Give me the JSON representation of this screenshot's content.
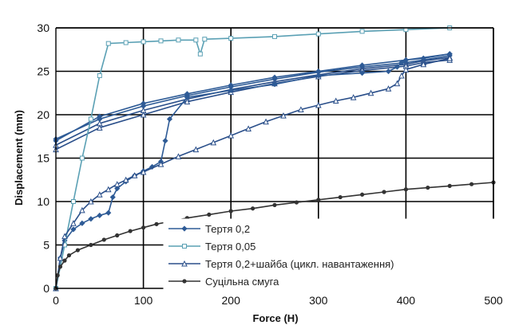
{
  "chart_data": {
    "type": "line",
    "xlabel": "Force (H)",
    "ylabel": "Displacement (mm)",
    "xlim": [
      0,
      500
    ],
    "ylim": [
      0,
      30
    ],
    "x_ticks": [
      "0",
      "100",
      "200",
      "300",
      "400",
      "500"
    ],
    "y_ticks": [
      "0",
      "5",
      "10",
      "15",
      "20",
      "25",
      "30"
    ],
    "grid": true,
    "legend_position": "bottom-right",
    "series": [
      {
        "name": "Тертя 0,2",
        "color": "#2e5b96",
        "marker": "diamond",
        "x": [
          0,
          5,
          10,
          20,
          30,
          40,
          50,
          60,
          65,
          70,
          80,
          90,
          100,
          110,
          120,
          125,
          130,
          150,
          200,
          250,
          300,
          350,
          380,
          390,
          395,
          400,
          420,
          450
        ],
        "y": [
          0,
          3.5,
          5.5,
          6.8,
          7.5,
          8.0,
          8.4,
          8.7,
          10.5,
          11.5,
          12.3,
          13.0,
          13.5,
          14.0,
          14.6,
          17.0,
          19.5,
          22.0,
          22.8,
          23.5,
          24.5,
          24.8,
          25.0,
          25.5,
          26.0,
          26.3,
          26.5,
          27.0
        ]
      },
      {
        "name": "Тертя 0,05",
        "color": "#5aa0b4",
        "marker": "square",
        "x": [
          0,
          10,
          20,
          30,
          40,
          50,
          60,
          80,
          100,
          120,
          140,
          160,
          165,
          170,
          200,
          250,
          300,
          350,
          400,
          450
        ],
        "y": [
          0,
          5.0,
          10.0,
          15.0,
          19.5,
          24.5,
          28.2,
          28.3,
          28.4,
          28.5,
          28.6,
          28.6,
          27.0,
          28.7,
          28.8,
          29.0,
          29.3,
          29.6,
          29.8,
          30.0
        ]
      },
      {
        "name": "Тертя 0,2+шайба (цикл. навантаження)",
        "color": "#2a4f8a",
        "marker": "triangle",
        "x": [
          0,
          5,
          10,
          20,
          30,
          40,
          50,
          60,
          70,
          80,
          90,
          100,
          120,
          140,
          160,
          180,
          200,
          220,
          240,
          260,
          280,
          300,
          320,
          340,
          360,
          380,
          390,
          395,
          400,
          420,
          450
        ],
        "y": [
          0,
          3.5,
          6.0,
          7.5,
          9.0,
          10.0,
          10.8,
          11.4,
          12.0,
          12.5,
          13.0,
          13.4,
          14.3,
          15.2,
          16.0,
          16.8,
          17.6,
          18.4,
          19.2,
          19.9,
          20.6,
          21.1,
          21.6,
          22.0,
          22.5,
          23.0,
          23.6,
          24.5,
          25.2,
          25.8,
          26.5
        ]
      },
      {
        "name": "Суцільна смуга",
        "color": "#333333",
        "marker": "circle",
        "x": [
          0,
          2,
          5,
          10,
          15,
          25,
          40,
          55,
          70,
          85,
          100,
          115,
          130,
          150,
          175,
          200,
          225,
          250,
          275,
          300,
          325,
          350,
          375,
          400,
          425,
          450,
          475,
          500
        ],
        "y": [
          0,
          1.5,
          2.5,
          3.2,
          3.8,
          4.4,
          5.0,
          5.6,
          6.1,
          6.6,
          7.0,
          7.4,
          7.7,
          8.1,
          8.5,
          8.9,
          9.2,
          9.6,
          9.9,
          10.2,
          10.5,
          10.8,
          11.1,
          11.4,
          11.6,
          11.8,
          12.0,
          12.2
        ]
      }
    ],
    "extra_series": [
      {
        "color": "#2e5b96",
        "marker": "diamond",
        "x": [
          0,
          50,
          100,
          150,
          200,
          250,
          300,
          350,
          400,
          420,
          450
        ],
        "y": [
          17.2,
          19.5,
          21.0,
          22.2,
          23.2,
          24.1,
          24.9,
          25.5,
          26.0,
          26.3,
          26.8
        ]
      },
      {
        "color": "#2a4f8a",
        "marker": "triangle",
        "x": [
          0,
          50,
          100,
          150,
          200,
          250,
          300,
          350,
          400,
          420,
          450
        ],
        "y": [
          16.5,
          19.0,
          20.5,
          21.8,
          22.9,
          23.8,
          24.6,
          25.3,
          25.8,
          26.2,
          26.6
        ]
      },
      {
        "color": "#2a4f8a",
        "marker": "triangle",
        "x": [
          0,
          50,
          100,
          150,
          200,
          250,
          300,
          350,
          400,
          420,
          450
        ],
        "y": [
          16.0,
          18.5,
          20.0,
          21.5,
          22.6,
          23.6,
          24.4,
          25.1,
          25.6,
          26.0,
          26.3
        ]
      },
      {
        "color": "#2e5b96",
        "marker": "diamond",
        "x": [
          0,
          50,
          100,
          150,
          200,
          250,
          300,
          350,
          400,
          450
        ],
        "y": [
          17.0,
          19.8,
          21.3,
          22.4,
          23.4,
          24.3,
          25.0,
          25.7,
          26.3,
          27.0
        ]
      }
    ]
  }
}
